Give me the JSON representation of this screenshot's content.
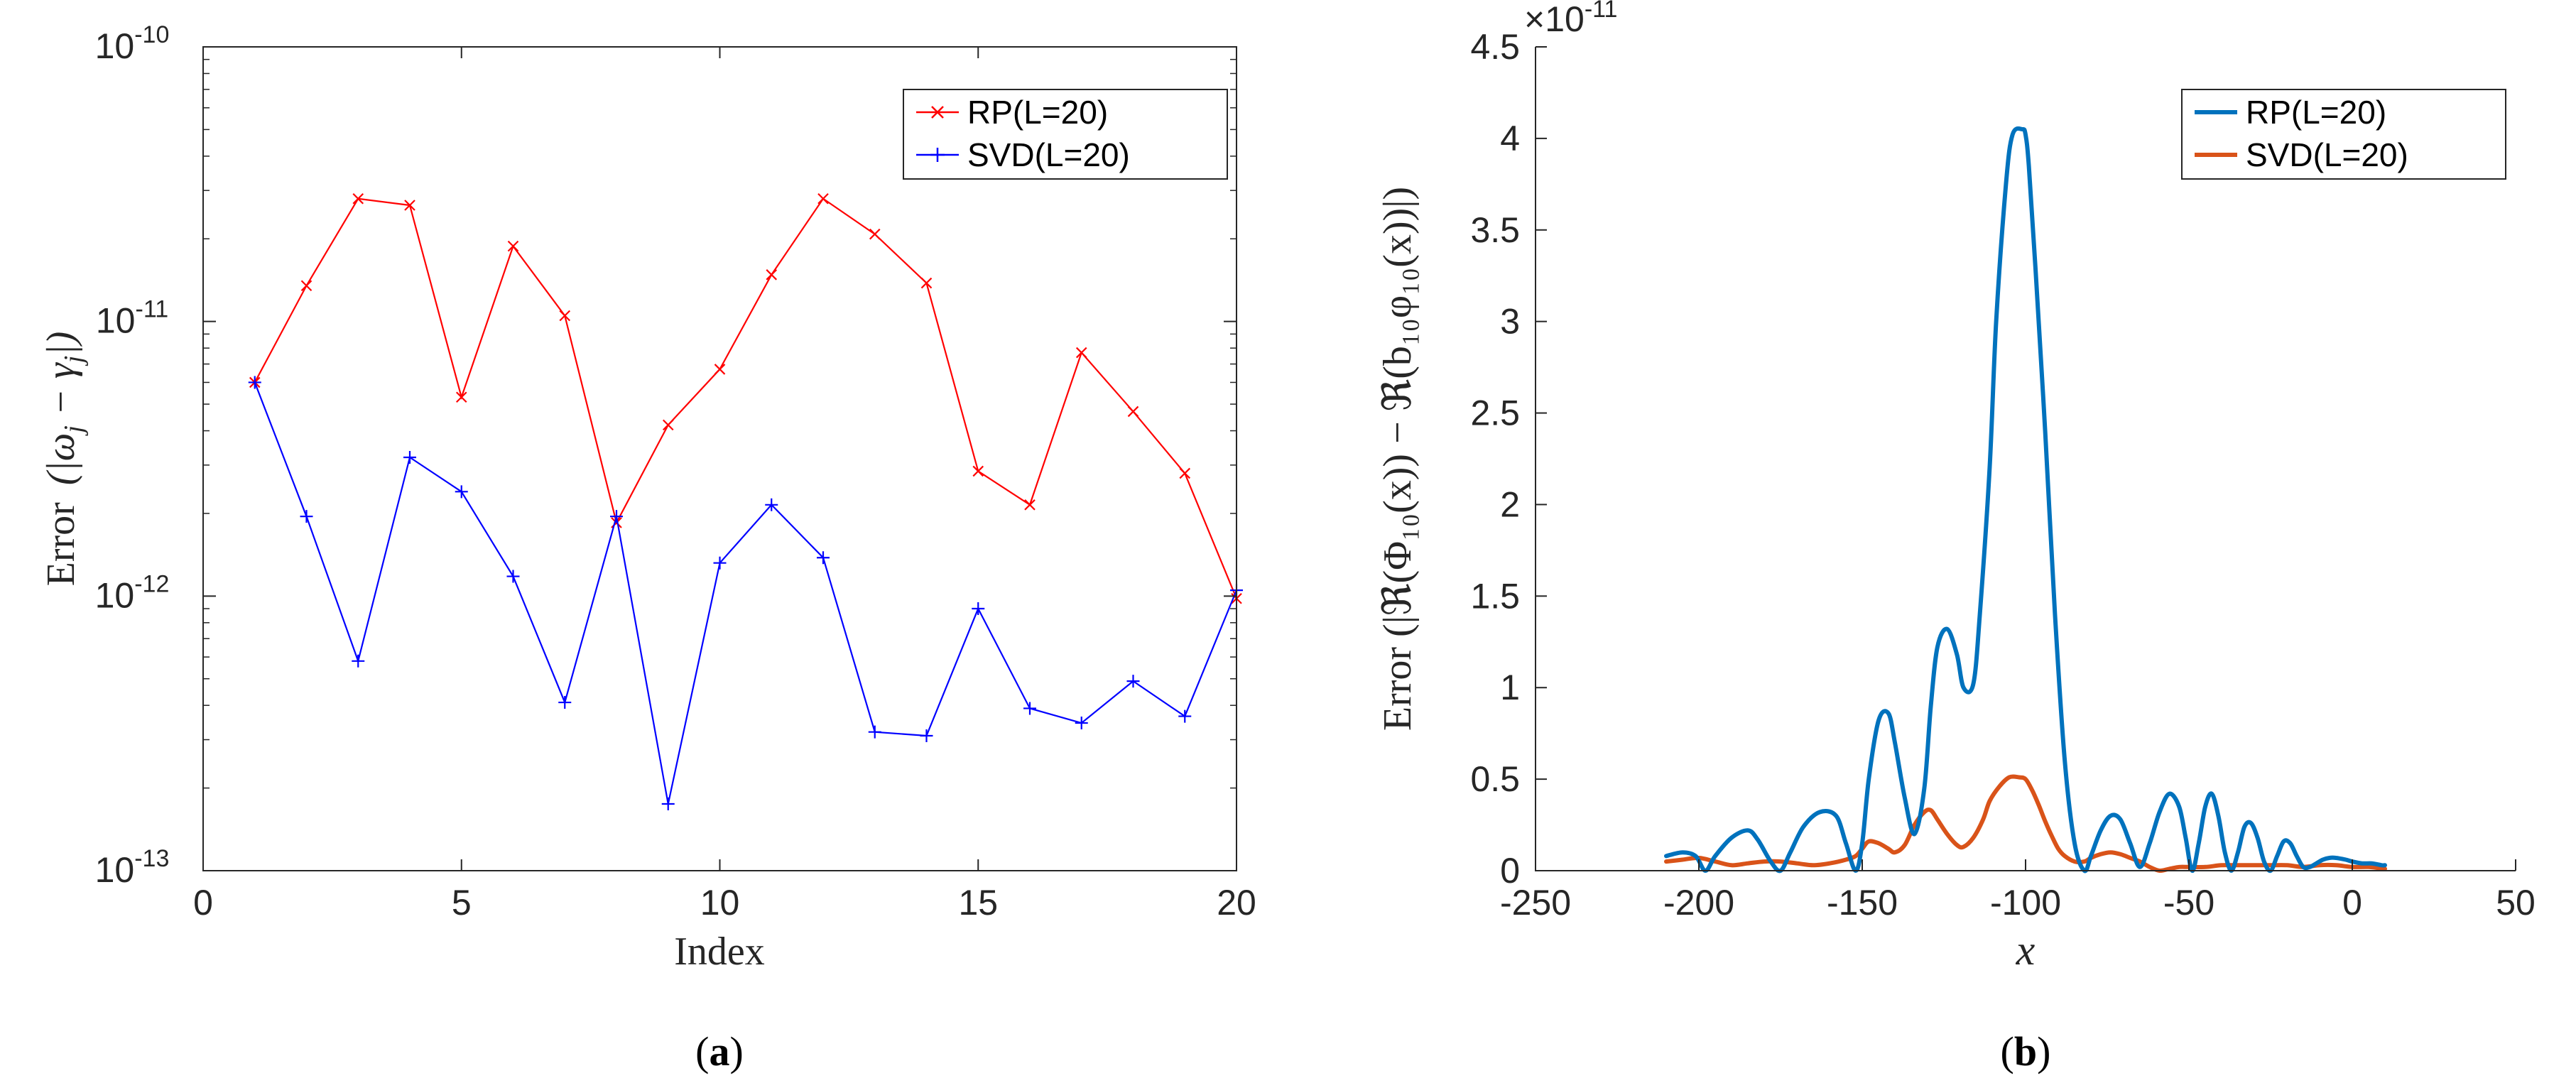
{
  "chart_data": [
    {
      "type": "line",
      "panel": "a",
      "panel_label": {
        "open": "(",
        "letter": "a",
        "close": ")"
      },
      "scale": "log",
      "xlabel": "Index",
      "ylabel": "Error (|ω_j − γ_j|)",
      "ylabel_parts": {
        "prefix": "Error",
        "expr": "(|ω",
        "sub1": "j",
        "mid": " − γ",
        "sub2": "j",
        "end": "|)"
      },
      "xlim": [
        0,
        20
      ],
      "ylim": [
        1e-13,
        1e-10
      ],
      "xticks": [
        0,
        5,
        10,
        15,
        20
      ],
      "xtick_labels": [
        "0",
        "5",
        "10",
        "15",
        "20"
      ],
      "yticks": [
        1e-13,
        1e-12,
        1e-11,
        1e-10
      ],
      "ytick_labels": [
        {
          "base": "10",
          "exp": "-13"
        },
        {
          "base": "10",
          "exp": "-12"
        },
        {
          "base": "10",
          "exp": "-11"
        },
        {
          "base": "10",
          "exp": "-10"
        }
      ],
      "legend_position": "top-right",
      "x": [
        1,
        2,
        3,
        4,
        5,
        6,
        7,
        8,
        9,
        10,
        11,
        12,
        13,
        14,
        15,
        16,
        17,
        18,
        19,
        20
      ],
      "series": [
        {
          "name": "RP(L=20)",
          "color": "#ff0000",
          "marker": "x",
          "values": [
            6e-12,
            1.35e-11,
            2.8e-11,
            2.65e-11,
            5.3e-12,
            1.88e-11,
            1.05e-11,
            1.85e-12,
            4.2e-12,
            6.7e-12,
            1.48e-11,
            2.8e-11,
            2.08e-11,
            1.38e-11,
            2.85e-12,
            2.15e-12,
            7.7e-12,
            4.7e-12,
            2.8e-12,
            9.8e-13
          ]
        },
        {
          "name": "SVD(L=20)",
          "color": "#0000ff",
          "marker": "+",
          "values": [
            6e-12,
            1.95e-12,
            5.8e-13,
            3.2e-12,
            2.4e-12,
            1.18e-12,
            4.1e-13,
            1.95e-12,
            1.75e-13,
            1.32e-12,
            2.15e-12,
            1.38e-12,
            3.2e-13,
            3.1e-13,
            9e-13,
            3.9e-13,
            3.45e-13,
            4.9e-13,
            3.65e-13,
            1.05e-12
          ]
        }
      ]
    },
    {
      "type": "line",
      "panel": "b",
      "panel_label": {
        "open": "(",
        "letter": "b",
        "close": ")"
      },
      "scale": "linear",
      "multiplier": {
        "prefix": "×10",
        "exp": "-11"
      },
      "xlabel": "x",
      "ylabel": "Error (|ℜ(Φ₁₀(x)) − ℜ(b₁₀φ₁₀(x))|)",
      "xlim": [
        -250,
        50
      ],
      "ylim": [
        0,
        4.5
      ],
      "xticks": [
        -250,
        -200,
        -150,
        -100,
        -50,
        0,
        50
      ],
      "xtick_labels": [
        "-250",
        "-200",
        "-150",
        "-100",
        "-50",
        "0",
        "50"
      ],
      "yticks": [
        0,
        0.5,
        1,
        1.5,
        2,
        2.5,
        3,
        3.5,
        4,
        4.5
      ],
      "ytick_labels": [
        "0",
        "0.5",
        "1",
        "1.5",
        "2",
        "2.5",
        "3",
        "3.5",
        "4",
        "4.5"
      ],
      "legend_position": "top-right",
      "series": [
        {
          "name": "RP(L=20)",
          "color": "#0072bd",
          "x": [
            -210,
            -205,
            -201,
            -198,
            -195,
            -190,
            -185,
            -182,
            -178,
            -175,
            -172,
            -168,
            -163,
            -158,
            -155,
            -152,
            -150,
            -148,
            -145,
            -142,
            -140,
            -137,
            -134,
            -131,
            -129,
            -127,
            -124,
            -121,
            -119,
            -116,
            -114,
            -111,
            -109,
            -106,
            -104,
            -101,
            -100,
            -99,
            -97,
            -94,
            -91,
            -88,
            -85,
            -82,
            -80,
            -77,
            -74,
            -71,
            -68,
            -65,
            -62,
            -59,
            -56,
            -53,
            -51,
            -49,
            -47,
            -45,
            -43,
            -41,
            -39,
            -37,
            -35,
            -33,
            -31,
            -29,
            -27,
            -25,
            -23,
            -21,
            -19,
            -17,
            -15,
            -13,
            -11,
            -9,
            -7,
            -5,
            -2,
            0,
            3,
            6,
            9,
            10
          ],
          "y": [
            0.08,
            0.1,
            0.08,
            0.0,
            0.08,
            0.18,
            0.22,
            0.17,
            0.05,
            0.0,
            0.1,
            0.24,
            0.32,
            0.3,
            0.15,
            0.0,
            0.15,
            0.5,
            0.82,
            0.86,
            0.7,
            0.4,
            0.2,
            0.45,
            0.9,
            1.22,
            1.32,
            1.18,
            1.0,
            1.02,
            1.4,
            2.2,
            3.0,
            3.75,
            4.02,
            4.05,
            4.02,
            3.85,
            3.3,
            2.4,
            1.4,
            0.6,
            0.15,
            0.0,
            0.08,
            0.22,
            0.3,
            0.28,
            0.15,
            0.02,
            0.15,
            0.32,
            0.42,
            0.35,
            0.18,
            0.0,
            0.15,
            0.35,
            0.42,
            0.3,
            0.1,
            0.0,
            0.1,
            0.24,
            0.26,
            0.18,
            0.05,
            0.0,
            0.08,
            0.16,
            0.15,
            0.08,
            0.02,
            0.02,
            0.04,
            0.06,
            0.07,
            0.07,
            0.06,
            0.05,
            0.04,
            0.04,
            0.03,
            0.03
          ]
        },
        {
          "name": "SVD(L=20)",
          "color": "#d95319",
          "x": [
            -210,
            -205,
            -200,
            -195,
            -190,
            -185,
            -180,
            -175,
            -170,
            -165,
            -160,
            -155,
            -152,
            -150,
            -148,
            -145,
            -142,
            -140,
            -137,
            -134,
            -131,
            -129,
            -127,
            -124,
            -121,
            -119,
            -116,
            -113,
            -111,
            -108,
            -105,
            -102,
            -100,
            -98,
            -96,
            -94,
            -92,
            -90,
            -88,
            -85,
            -82,
            -80,
            -77,
            -74,
            -71,
            -68,
            -65,
            -62,
            -59,
            -56,
            -53,
            -50,
            -45,
            -40,
            -35,
            -30,
            -25,
            -20,
            -15,
            -10,
            -5,
            0,
            5,
            10
          ],
          "y": [
            0.05,
            0.06,
            0.07,
            0.05,
            0.03,
            0.04,
            0.05,
            0.05,
            0.04,
            0.03,
            0.04,
            0.06,
            0.08,
            0.12,
            0.16,
            0.15,
            0.12,
            0.1,
            0.14,
            0.25,
            0.32,
            0.33,
            0.28,
            0.2,
            0.14,
            0.13,
            0.18,
            0.28,
            0.38,
            0.46,
            0.51,
            0.51,
            0.5,
            0.44,
            0.36,
            0.27,
            0.19,
            0.12,
            0.08,
            0.05,
            0.05,
            0.07,
            0.09,
            0.1,
            0.09,
            0.07,
            0.05,
            0.02,
            0.0,
            0.01,
            0.02,
            0.02,
            0.02,
            0.03,
            0.03,
            0.03,
            0.03,
            0.03,
            0.02,
            0.03,
            0.03,
            0.02,
            0.02,
            0.01
          ]
        }
      ]
    }
  ]
}
